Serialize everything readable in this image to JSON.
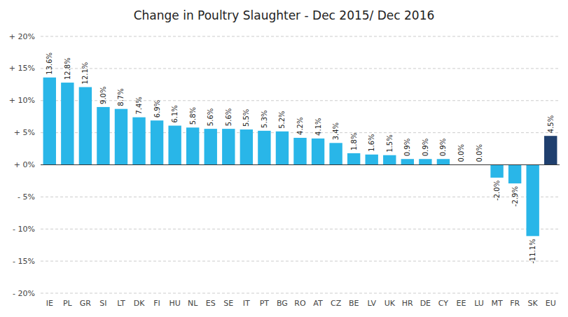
{
  "chart_data": {
    "type": "bar",
    "title": "Change in Poultry Slaughter - Dec 2015/ Dec 2016",
    "categories": [
      "IE",
      "PL",
      "GR",
      "SI",
      "LT",
      "DK",
      "FI",
      "HU",
      "NL",
      "ES",
      "SE",
      "IT",
      "PT",
      "BG",
      "RO",
      "AT",
      "CZ",
      "BE",
      "LV",
      "UK",
      "HR",
      "DE",
      "CY",
      "EE",
      "LU",
      "MT",
      "FR",
      "SK",
      "EU"
    ],
    "values": [
      13.6,
      12.8,
      12.1,
      9.0,
      8.7,
      7.4,
      6.9,
      6.1,
      5.8,
      5.6,
      5.6,
      5.5,
      5.3,
      5.2,
      4.2,
      4.1,
      3.4,
      1.8,
      1.6,
      1.5,
      0.9,
      0.9,
      0.9,
      0.0,
      0.0,
      -2.0,
      -2.9,
      -11.1,
      4.5
    ],
    "value_labels": [
      "13.6%",
      "12.8%",
      "12.1%",
      "9.0%",
      "8.7%",
      "7.4%",
      "6.9%",
      "6.1%",
      "5.8%",
      "5.6%",
      "5.6%",
      "5.5%",
      "5.3%",
      "5.2%",
      "4.2%",
      "4.1%",
      "3.4%",
      "1.8%",
      "1.6%",
      "1.5%",
      "0.9%",
      "0.9%",
      "0.9%",
      "0.0%",
      "0.0%",
      "-2.0%",
      "-2.9%",
      "-11.1%",
      "4.5%"
    ],
    "colors": [
      "#29b6e8",
      "#29b6e8",
      "#29b6e8",
      "#29b6e8",
      "#29b6e8",
      "#29b6e8",
      "#29b6e8",
      "#29b6e8",
      "#29b6e8",
      "#29b6e8",
      "#29b6e8",
      "#29b6e8",
      "#29b6e8",
      "#29b6e8",
      "#29b6e8",
      "#29b6e8",
      "#29b6e8",
      "#29b6e8",
      "#29b6e8",
      "#29b6e8",
      "#29b6e8",
      "#29b6e8",
      "#29b6e8",
      "#29b6e8",
      "#29b6e8",
      "#29b6e8",
      "#29b6e8",
      "#29b6e8",
      "#1f3f6e"
    ],
    "ylim": [
      -20,
      20
    ],
    "yticks": [
      {
        "value": -20,
        "label": "- 20%"
      },
      {
        "value": -15,
        "label": "- 15%"
      },
      {
        "value": -10,
        "label": "- 10%"
      },
      {
        "value": -5,
        "label": "- 5%"
      },
      {
        "value": 0,
        "label": "+ 0%"
      },
      {
        "value": 5,
        "label": "+ 5%"
      },
      {
        "value": 10,
        "label": "+ 10%"
      },
      {
        "value": 15,
        "label": "+ 15%"
      },
      {
        "value": 20,
        "label": "+ 20%"
      }
    ],
    "grid": true,
    "data_labels": true
  }
}
